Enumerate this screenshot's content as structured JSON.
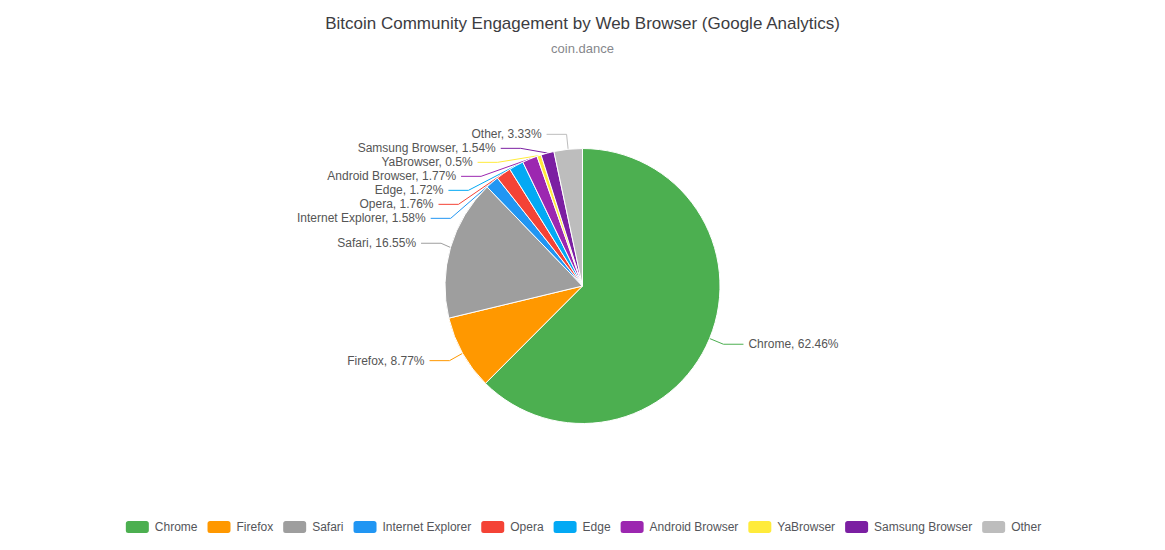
{
  "chart_data": {
    "type": "pie",
    "title": "Bitcoin Community Engagement by Web Browser (Google Analytics)",
    "subtitle": "coin.dance",
    "categories": [
      "Chrome",
      "Firefox",
      "Safari",
      "Internet Explorer",
      "Opera",
      "Edge",
      "Android Browser",
      "YaBrowser",
      "Samsung Browser",
      "Other"
    ],
    "values": [
      62.46,
      8.77,
      16.55,
      1.58,
      1.76,
      1.72,
      1.77,
      0.5,
      1.54,
      3.33
    ],
    "value_labels": [
      "Chrome, 62.46%",
      "Firefox, 8.77%",
      "Safari, 16.55%",
      "Internet Explorer, 1.58%",
      "Opera, 1.76%",
      "Edge, 1.72%",
      "Android Browser, 1.77%",
      "YaBrowser, 0.5%",
      "Samsung Browser, 1.54%",
      "Other, 3.33%"
    ],
    "colors": [
      "#4CAF50",
      "#FF9800",
      "#9E9E9E",
      "#2196F3",
      "#F44336",
      "#03A9F4",
      "#9C27B0",
      "#FFEB3B",
      "#7B1FA2",
      "#BDBDBD"
    ],
    "data_labels": true,
    "legend": "bottom"
  }
}
